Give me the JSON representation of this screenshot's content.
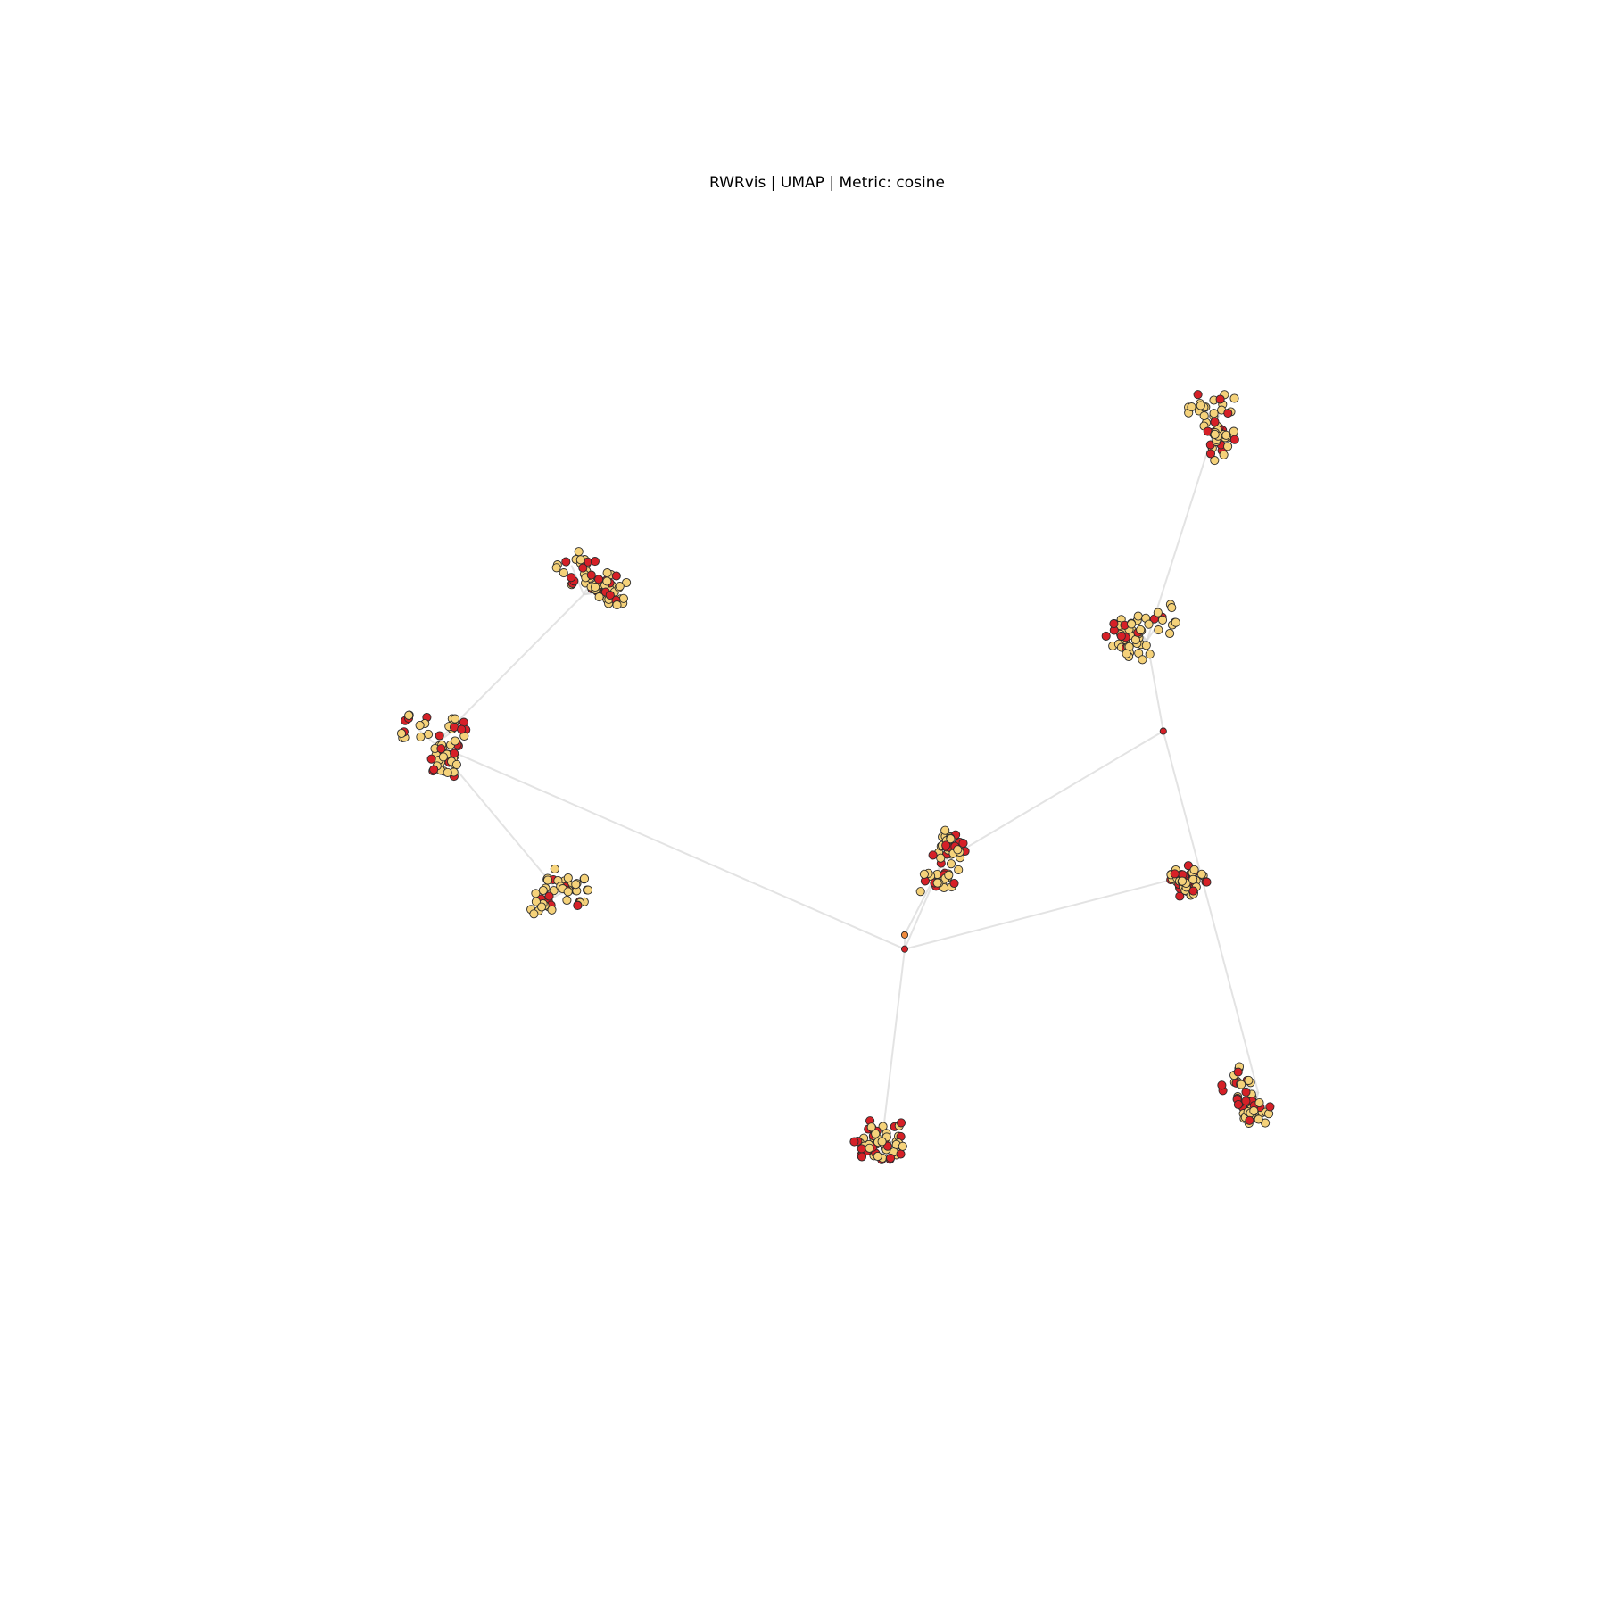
{
  "chart_data": {
    "type": "scatter",
    "title": "RWRvis | UMAP | Metric: cosine",
    "xlabel": "",
    "ylabel": "",
    "axes_visible": false,
    "grid": false,
    "legend": "none",
    "xlim": [
      0,
      1000
    ],
    "ylim": [
      0,
      1000
    ],
    "colors": {
      "red_node": "#d62027",
      "yellow_node": "#f5d27a",
      "orange_node": "#f08a3c",
      "edge": "#d9d9d9",
      "node_outline": "#2b2b2b"
    },
    "hubs": [
      {
        "id": "hub-center-upper",
        "x": 560,
        "y": 388,
        "color": "orange"
      },
      {
        "id": "hub-center",
        "x": 560,
        "y": 376,
        "color": "red"
      },
      {
        "id": "hub-right",
        "x": 767,
        "y": 561,
        "color": "red"
      }
    ],
    "clusters": [
      {
        "id": "c-top-right",
        "x": 810,
        "y": 824,
        "spread": 26,
        "red_ratio": 0.3,
        "count": 52,
        "seed": 11
      },
      {
        "id": "c-upper-right",
        "x": 754,
        "y": 638,
        "spread": 30,
        "red_ratio": 0.25,
        "count": 62,
        "seed": 23
      },
      {
        "id": "c-upper-left",
        "x": 303,
        "y": 677,
        "spread": 30,
        "red_ratio": 0.32,
        "count": 60,
        "seed": 37
      },
      {
        "id": "c-left",
        "x": 184,
        "y": 550,
        "spread": 28,
        "red_ratio": 0.35,
        "count": 62,
        "seed": 41
      },
      {
        "id": "c-lower-left",
        "x": 284,
        "y": 423,
        "spread": 25,
        "red_ratio": 0.22,
        "count": 48,
        "seed": 53
      },
      {
        "id": "c-center",
        "x": 590,
        "y": 450,
        "spread": 26,
        "red_ratio": 0.3,
        "count": 60,
        "seed": 67
      },
      {
        "id": "c-right",
        "x": 774,
        "y": 435,
        "spread": 26,
        "red_ratio": 0.45,
        "count": 56,
        "seed": 71
      },
      {
        "id": "c-lower-right",
        "x": 843,
        "y": 254,
        "spread": 28,
        "red_ratio": 0.35,
        "count": 58,
        "seed": 83
      },
      {
        "id": "c-bottom",
        "x": 540,
        "y": 196,
        "spread": 30,
        "red_ratio": 0.32,
        "count": 60,
        "seed": 97
      }
    ],
    "edges": [
      [
        "hub-center",
        "hub-center-upper"
      ],
      [
        "hub-center-upper",
        "c-center"
      ],
      [
        "hub-center",
        "c-center"
      ],
      [
        "hub-center",
        "c-left"
      ],
      [
        "hub-center",
        "c-right"
      ],
      [
        "hub-center",
        "c-bottom"
      ],
      [
        "c-center",
        "hub-right"
      ],
      [
        "hub-right",
        "c-upper-right"
      ],
      [
        "hub-right",
        "c-lower-right"
      ],
      [
        "c-upper-right",
        "c-top-right"
      ],
      [
        "c-left",
        "c-upper-left"
      ],
      [
        "c-left",
        "c-lower-left"
      ]
    ]
  }
}
